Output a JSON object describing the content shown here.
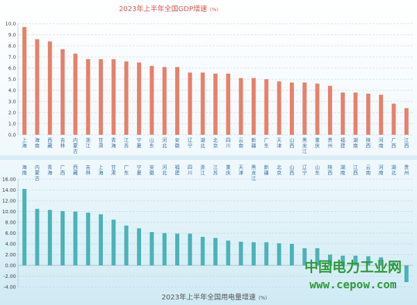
{
  "watermark": {
    "cn": "中国电力工业网",
    "url": "www.cepow.com"
  },
  "chart_data": [
    {
      "type": "bar",
      "title": "2023年上半年全国GDP增速",
      "unit": "(%)",
      "ylim": [
        0,
        10
      ],
      "yticks": [
        "0.0",
        "1.0",
        "2.0",
        "3.0",
        "4.0",
        "5.0",
        "6.0",
        "7.0",
        "8.0",
        "9.0",
        "10.0"
      ],
      "grid": true,
      "bar_color": "#e8806a",
      "categories": [
        "上海",
        "海南",
        "西藏",
        "吉林",
        "内蒙古",
        "浙江",
        "甘肃",
        "青海",
        "江苏",
        "宁夏",
        "山东",
        "河北",
        "安徽",
        "辽宁",
        "湖北",
        "北京",
        "四川",
        "云南",
        "新疆",
        "广东",
        "天津",
        "山西",
        "黑龙江",
        "重庆",
        "贵州",
        "福建",
        "湖南",
        "陕西",
        "河南",
        "广西",
        "江西"
      ],
      "values": [
        9.7,
        8.6,
        8.4,
        7.7,
        7.3,
        6.8,
        6.8,
        6.8,
        6.6,
        6.5,
        6.2,
        6.1,
        6.1,
        5.6,
        5.6,
        5.5,
        5.5,
        5.1,
        5.1,
        5.0,
        4.8,
        4.7,
        4.7,
        4.6,
        4.4,
        3.8,
        3.8,
        3.7,
        3.6,
        2.8,
        2.4
      ]
    },
    {
      "type": "bar",
      "title": "2023年上半年全国用电量增速",
      "unit": "(%)",
      "ylim": [
        -4,
        16
      ],
      "yticks": [
        "-4.00",
        "-2.00",
        "0.00",
        "2.00",
        "4.00",
        "6.00",
        "8.00",
        "10.00",
        "12.00",
        "14.00",
        "16.00"
      ],
      "grid": true,
      "bar_color": "#4ab3b8",
      "categories": [
        "海南",
        "内蒙古",
        "青海",
        "广西",
        "西藏",
        "吉林",
        "上海",
        "甘肃",
        "广东",
        "宁夏",
        "安徽",
        "河北",
        "福建",
        "四川",
        "浙江",
        "江苏",
        "重庆",
        "天津",
        "黑龙江",
        "新疆",
        "北京",
        "山西",
        "辽宁",
        "山东",
        "陕西",
        "湖南",
        "江西",
        "云南",
        "河南",
        "湖北",
        "贵州"
      ],
      "values": [
        14.2,
        10.5,
        10.3,
        10.1,
        10.0,
        9.8,
        9.5,
        8.5,
        7.4,
        6.9,
        6.2,
        6.0,
        5.9,
        5.9,
        5.3,
        5.1,
        4.6,
        4.4,
        4.3,
        4.3,
        4.1,
        4.0,
        3.2,
        3.2,
        2.0,
        1.8,
        1.8,
        1.7,
        1.5,
        0.5,
        -3.1
      ]
    }
  ]
}
